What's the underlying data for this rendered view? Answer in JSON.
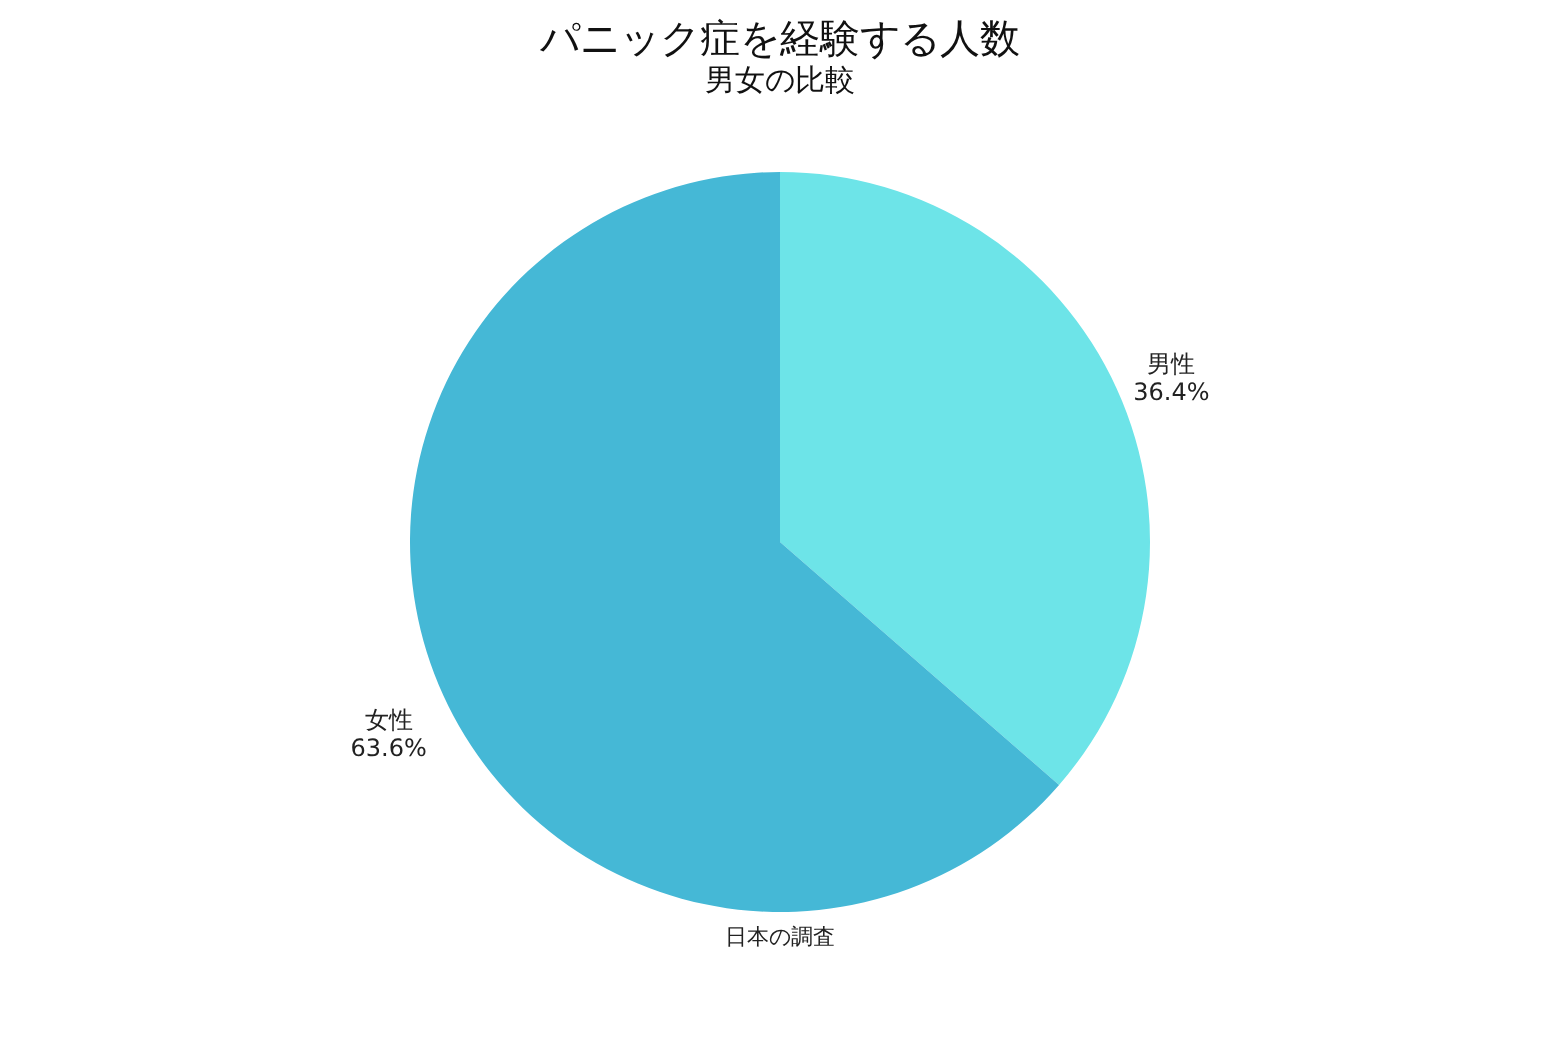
{
  "chart_data": {
    "type": "pie",
    "title": "パニック症を経験する人数",
    "subtitle": "男女の比較",
    "categories": [
      "男性",
      "女性"
    ],
    "values": [
      36.4,
      63.6
    ],
    "value_labels": [
      "36.4%",
      "63.6%"
    ],
    "colors": [
      "#6de4e8",
      "#45b8d6"
    ],
    "annotations": [
      "日本の調査"
    ],
    "legend": false
  }
}
